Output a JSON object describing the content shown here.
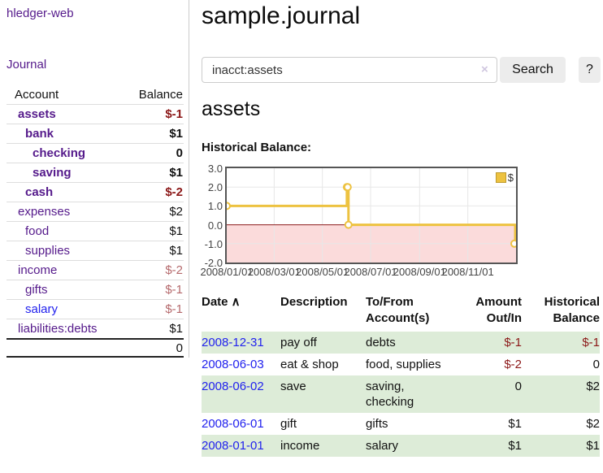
{
  "app": {
    "title": "hledger-web"
  },
  "sidebar": {
    "journal_link": "Journal",
    "accounts": {
      "col_account": "Account",
      "col_balance": "Balance",
      "rows": [
        {
          "name": "assets",
          "depth": 1,
          "balance": "$-1",
          "bold": true,
          "neg": "strong"
        },
        {
          "name": "bank",
          "depth": 2,
          "balance": "$1",
          "bold": true,
          "neg": "none"
        },
        {
          "name": "checking",
          "depth": 3,
          "balance": "0",
          "bold": true,
          "neg": "none"
        },
        {
          "name": "saving",
          "depth": 3,
          "balance": "$1",
          "bold": true,
          "neg": "none"
        },
        {
          "name": "cash",
          "depth": 2,
          "balance": "$-2",
          "bold": true,
          "neg": "strong"
        },
        {
          "name": "expenses",
          "depth": 1,
          "balance": "$2",
          "bold": false,
          "neg": "none"
        },
        {
          "name": "food",
          "depth": 2,
          "balance": "$1",
          "bold": false,
          "neg": "none"
        },
        {
          "name": "supplies",
          "depth": 2,
          "balance": "$1",
          "bold": false,
          "neg": "none"
        },
        {
          "name": "income",
          "depth": 1,
          "balance": "$-2",
          "bold": false,
          "neg": "soft"
        },
        {
          "name": "gifts",
          "depth": 2,
          "balance": "$-1",
          "bold": false,
          "neg": "soft"
        },
        {
          "name": "salary",
          "depth": 2,
          "balance": "$-1",
          "bold": false,
          "neg": "soft",
          "blue": true
        },
        {
          "name": "liabilities:debts",
          "depth": 1,
          "balance": "$1",
          "bold": false,
          "neg": "none"
        }
      ],
      "total": "0"
    }
  },
  "header": {
    "title": "sample.journal"
  },
  "search": {
    "value": "inacct:assets",
    "clear_icon": "×",
    "button_label": "Search",
    "help_label": "?"
  },
  "account_page": {
    "title": "assets",
    "chart_label": "Historical Balance:"
  },
  "chart_data": {
    "type": "line",
    "line_style": "step",
    "title": "Historical Balance",
    "legend": [
      {
        "name": "$",
        "color": "#edc240"
      }
    ],
    "legend_position": "top-right",
    "series": [
      {
        "name": "$",
        "color": "#edc240",
        "points": [
          [
            "2008-01-01",
            1
          ],
          [
            "2008-06-01",
            2
          ],
          [
            "2008-06-02",
            2
          ],
          [
            "2008-06-03",
            0
          ],
          [
            "2008-12-31",
            -1
          ]
        ]
      }
    ],
    "x_start": "2008-01-01",
    "x_total_days": 366,
    "ylim": [
      -2.0,
      3.0
    ],
    "yticks": [
      "3.0",
      "2.0",
      "1.0",
      "0.0",
      "-1.0",
      "-2.0"
    ],
    "ytick_values": [
      3,
      2,
      1,
      0,
      -1,
      -2
    ],
    "xticks": [
      {
        "label": "2008/01/01",
        "date": "2008-01-01"
      },
      {
        "label": "2008/03/01",
        "date": "2008-03-01"
      },
      {
        "label": "2008/05/01",
        "date": "2008-05-01"
      },
      {
        "label": "2008/07/01",
        "date": "2008-07-01"
      },
      {
        "label": "2008/09/01",
        "date": "2008-09-01"
      },
      {
        "label": "2008/11/01",
        "date": "2008-11-01"
      }
    ],
    "grid": true,
    "negative_region_color": "#fbdbdb",
    "zero_line_color": "#8b1a1a"
  },
  "register": {
    "headers": [
      {
        "line1": "Date",
        "line2": "",
        "sort": "∧",
        "align": "left"
      },
      {
        "line1": "Description",
        "line2": "",
        "align": "left"
      },
      {
        "line1": "To/From",
        "line2": "Account(s)",
        "align": "left"
      },
      {
        "line1": "Amount",
        "line2": "Out/In",
        "align": "right"
      },
      {
        "line1": "Historical",
        "line2": "Balance",
        "align": "right"
      }
    ],
    "rows": [
      {
        "date": "2008-12-31",
        "description": "pay off",
        "accounts": "debts",
        "amount": "$-1",
        "amount_neg": true,
        "balance": "$-1",
        "balance_neg": true,
        "green": true
      },
      {
        "date": "2008-06-03",
        "description": "eat & shop",
        "accounts": "food, supplies",
        "amount": "$-2",
        "amount_neg": true,
        "balance": "0",
        "balance_neg": false,
        "green": false
      },
      {
        "date": "2008-06-02",
        "description": "save",
        "accounts": "saving, checking",
        "amount": "0",
        "amount_neg": false,
        "balance": "$2",
        "balance_neg": false,
        "green": true
      },
      {
        "date": "2008-06-01",
        "description": "gift",
        "accounts": "gifts",
        "amount": "$1",
        "amount_neg": false,
        "balance": "$2",
        "balance_neg": false,
        "green": false
      },
      {
        "date": "2008-01-01",
        "description": "income",
        "accounts": "salary",
        "amount": "$1",
        "amount_neg": false,
        "balance": "$1",
        "balance_neg": false,
        "green": true
      }
    ]
  }
}
